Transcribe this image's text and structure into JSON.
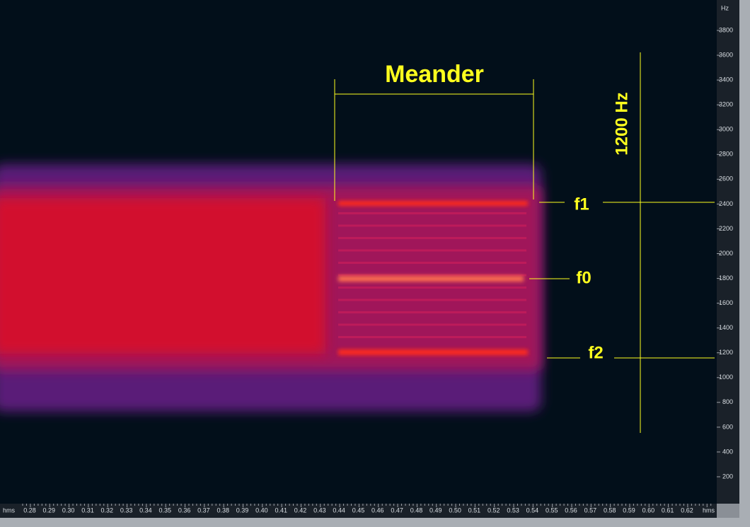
{
  "spectrogram": {
    "y_axis": {
      "unit": "Hz",
      "ticks": [
        "200",
        "400",
        "600",
        "800",
        "1000",
        "1200",
        "1400",
        "1600",
        "1800",
        "2000",
        "2200",
        "2400",
        "2600",
        "2800",
        "3000",
        "3200",
        "3400",
        "3600",
        "3800"
      ]
    },
    "x_axis": {
      "unit": "hms",
      "ticks": [
        "0.28",
        "0.29",
        "0.30",
        "0.31",
        "0.32",
        "0.33",
        "0.34",
        "0.35",
        "0.36",
        "0.37",
        "0.38",
        "0.39",
        "0.40",
        "0.41",
        "0.42",
        "0.43",
        "0.44",
        "0.45",
        "0.46",
        "0.47",
        "0.48",
        "0.49",
        "0.50",
        "0.51",
        "0.52",
        "0.53",
        "0.54",
        "0.55",
        "0.56",
        "0.57",
        "0.58",
        "0.59",
        "0.60",
        "0.61",
        "0.62"
      ]
    },
    "annotations": {
      "meander": "Meander",
      "span": "1200 Hz",
      "f1": "f1",
      "f0": "f0",
      "f2": "f2"
    }
  }
}
